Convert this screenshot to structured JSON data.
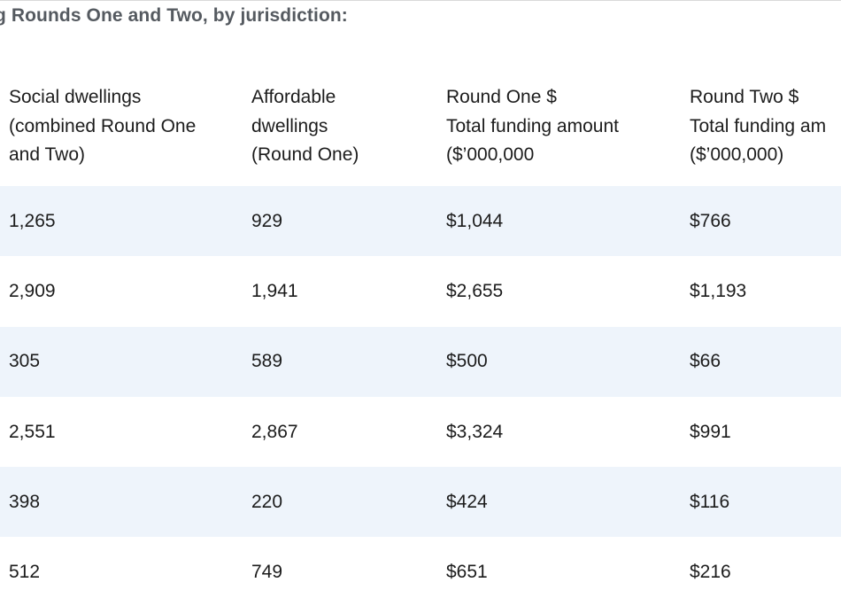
{
  "heading": "g Rounds One and Two, by jurisdiction:",
  "columns": [
    {
      "lines": [
        "Social dwellings",
        "(combined Round One",
        "and Two)"
      ]
    },
    {
      "lines": [
        "Affordable",
        "dwellings",
        "(Round One)"
      ]
    },
    {
      "lines": [
        "Round One $",
        "Total funding amount",
        "($’000,000"
      ]
    },
    {
      "lines": [
        "Round Two $",
        "Total funding am",
        "($’000,000)"
      ]
    }
  ],
  "rows": [
    [
      "1,265",
      "929",
      "$1,044",
      "$766"
    ],
    [
      "2,909",
      "1,941",
      "$2,655",
      "$1,193"
    ],
    [
      "305",
      "589",
      "$500",
      "$66"
    ],
    [
      "2,551",
      "2,867",
      "$3,324",
      "$991"
    ],
    [
      "398",
      "220",
      "$424",
      "$116"
    ],
    [
      "512",
      "749",
      "$651",
      "$216"
    ]
  ],
  "colors": {
    "shaded_row": "#eef4fb",
    "heading_text": "#555a60",
    "body_text": "#1c1c1c"
  }
}
